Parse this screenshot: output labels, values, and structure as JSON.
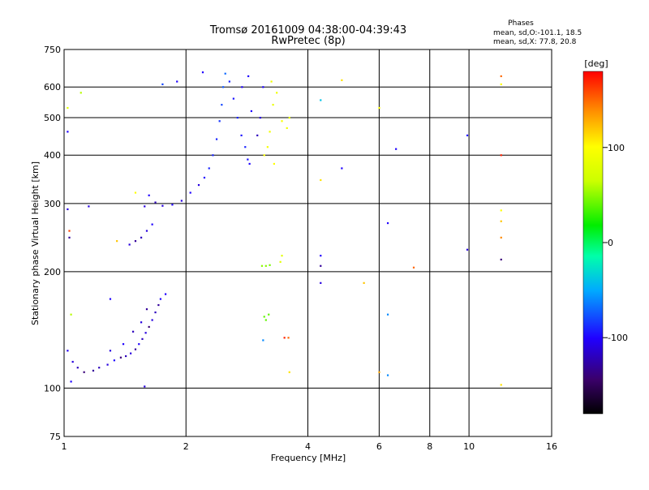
{
  "chart_data": {
    "type": "scatter",
    "title": "Tromsø 20161009 04:38:00-04:39:43",
    "subtitle": "RwPretec (8p)",
    "xlabel": "Frequency [MHz]",
    "ylabel": "Stationary phase Virtual Height [km]",
    "x_scale": "log",
    "y_scale": "log",
    "xlim": [
      1,
      16
    ],
    "ylim": [
      75,
      750
    ],
    "x_ticks": [
      1,
      2,
      4,
      6,
      8,
      10,
      16
    ],
    "y_ticks": [
      75,
      100,
      200,
      300,
      400,
      500,
      600,
      750
    ],
    "grid": true,
    "phase_stats": {
      "header": "Phases",
      "line_o": "mean, sd,O:-101.1, 18.5",
      "line_x": "mean, sd,X:  77.8, 20.8"
    },
    "colorbar": {
      "label": "[deg]",
      "ticks": [
        100,
        0,
        -100
      ],
      "range": [
        -180,
        180
      ],
      "colormap": "rainbow"
    },
    "series": [
      {
        "points": [
          {
            "f": 1.05,
            "h": 117,
            "p": -110
          },
          {
            "f": 1.08,
            "h": 113,
            "p": -120
          },
          {
            "f": 1.12,
            "h": 110,
            "p": -140
          },
          {
            "f": 1.18,
            "h": 111,
            "p": -130
          },
          {
            "f": 1.22,
            "h": 113,
            "p": -120
          },
          {
            "f": 1.28,
            "h": 115,
            "p": -110
          },
          {
            "f": 1.33,
            "h": 118,
            "p": -100
          },
          {
            "f": 1.38,
            "h": 120,
            "p": -140
          },
          {
            "f": 1.42,
            "h": 121,
            "p": -120
          },
          {
            "f": 1.46,
            "h": 123,
            "p": -110
          },
          {
            "f": 1.5,
            "h": 126,
            "p": -130
          },
          {
            "f": 1.53,
            "h": 130,
            "p": -100
          },
          {
            "f": 1.56,
            "h": 134,
            "p": -120
          },
          {
            "f": 1.59,
            "h": 139,
            "p": -110
          },
          {
            "f": 1.62,
            "h": 144,
            "p": -140
          },
          {
            "f": 1.65,
            "h": 150,
            "p": -110
          },
          {
            "f": 1.68,
            "h": 157,
            "p": -120
          },
          {
            "f": 1.71,
            "h": 164,
            "p": -130
          },
          {
            "f": 1.73,
            "h": 170,
            "p": -100
          },
          {
            "f": 1.3,
            "h": 125,
            "p": -110
          },
          {
            "f": 1.4,
            "h": 130,
            "p": -100
          },
          {
            "f": 1.48,
            "h": 140,
            "p": -120
          },
          {
            "f": 1.55,
            "h": 148,
            "p": -110
          },
          {
            "f": 1.6,
            "h": 160,
            "p": -130
          },
          {
            "f": 1.02,
            "h": 125,
            "p": -105
          },
          {
            "f": 1.04,
            "h": 104,
            "p": -100
          },
          {
            "f": 1.3,
            "h": 170,
            "p": -100
          },
          {
            "f": 1.58,
            "h": 101,
            "p": -110
          },
          {
            "f": 1.78,
            "h": 175,
            "p": -100
          },
          {
            "f": 1.45,
            "h": 235,
            "p": -110
          },
          {
            "f": 1.5,
            "h": 240,
            "p": -130
          },
          {
            "f": 1.55,
            "h": 245,
            "p": -120
          },
          {
            "f": 1.6,
            "h": 255,
            "p": -110
          },
          {
            "f": 1.65,
            "h": 265,
            "p": -100
          },
          {
            "f": 1.58,
            "h": 295,
            "p": -110
          },
          {
            "f": 1.62,
            "h": 315,
            "p": -100
          },
          {
            "f": 1.68,
            "h": 302,
            "p": -120
          },
          {
            "f": 1.75,
            "h": 296,
            "p": -110
          },
          {
            "f": 1.85,
            "h": 298,
            "p": -100
          },
          {
            "f": 1.95,
            "h": 305,
            "p": -110
          },
          {
            "f": 2.05,
            "h": 320,
            "p": -100
          },
          {
            "f": 2.15,
            "h": 335,
            "p": -110
          },
          {
            "f": 2.22,
            "h": 350,
            "p": -100
          },
          {
            "f": 2.28,
            "h": 370,
            "p": -90
          },
          {
            "f": 2.33,
            "h": 400,
            "p": -90
          },
          {
            "f": 2.38,
            "h": 440,
            "p": -90
          },
          {
            "f": 2.42,
            "h": 490,
            "p": -85
          },
          {
            "f": 2.45,
            "h": 540,
            "p": -80
          },
          {
            "f": 2.47,
            "h": 600,
            "p": -75
          },
          {
            "f": 2.5,
            "h": 650,
            "p": -70
          },
          {
            "f": 2.56,
            "h": 620,
            "p": -90
          },
          {
            "f": 2.62,
            "h": 560,
            "p": -95
          },
          {
            "f": 2.68,
            "h": 500,
            "p": -90
          },
          {
            "f": 2.74,
            "h": 450,
            "p": -95
          },
          {
            "f": 2.8,
            "h": 420,
            "p": -90
          },
          {
            "f": 2.84,
            "h": 390,
            "p": -95
          },
          {
            "f": 2.87,
            "h": 380,
            "p": -100
          },
          {
            "f": 2.75,
            "h": 600,
            "p": -100
          },
          {
            "f": 2.85,
            "h": 640,
            "p": -100
          },
          {
            "f": 2.9,
            "h": 520,
            "p": -100
          },
          {
            "f": 3.0,
            "h": 450,
            "p": -120
          },
          {
            "f": 3.05,
            "h": 500,
            "p": -110
          },
          {
            "f": 3.1,
            "h": 600,
            "p": -100
          },
          {
            "f": 3.12,
            "h": 400,
            "p": 100
          },
          {
            "f": 3.18,
            "h": 420,
            "p": 95
          },
          {
            "f": 3.22,
            "h": 460,
            "p": 90
          },
          {
            "f": 3.28,
            "h": 540,
            "p": 85
          },
          {
            "f": 3.35,
            "h": 580,
            "p": 90
          },
          {
            "f": 3.45,
            "h": 490,
            "p": 95
          },
          {
            "f": 3.55,
            "h": 470,
            "p": 90
          },
          {
            "f": 3.6,
            "h": 500,
            "p": 85
          },
          {
            "f": 3.25,
            "h": 620,
            "p": 90
          },
          {
            "f": 3.3,
            "h": 380,
            "p": 100
          },
          {
            "f": 3.08,
            "h": 207,
            "p": 50
          },
          {
            "f": 3.15,
            "h": 207,
            "p": 50
          },
          {
            "f": 3.22,
            "h": 208,
            "p": 45
          },
          {
            "f": 3.42,
            "h": 212,
            "p": 80
          },
          {
            "f": 3.45,
            "h": 220,
            "p": 80
          },
          {
            "f": 3.12,
            "h": 153,
            "p": 40
          },
          {
            "f": 3.15,
            "h": 150,
            "p": 40
          },
          {
            "f": 3.2,
            "h": 155,
            "p": 40
          },
          {
            "f": 1.1,
            "h": 580,
            "p": 60
          },
          {
            "f": 1.02,
            "h": 530,
            "p": 80
          },
          {
            "f": 1.02,
            "h": 460,
            "p": -100
          },
          {
            "f": 1.02,
            "h": 290,
            "p": -110
          },
          {
            "f": 1.03,
            "h": 255,
            "p": 160
          },
          {
            "f": 1.03,
            "h": 245,
            "p": -130
          },
          {
            "f": 1.15,
            "h": 295,
            "p": -110
          },
          {
            "f": 1.35,
            "h": 240,
            "p": 120
          },
          {
            "f": 1.04,
            "h": 155,
            "p": 60
          },
          {
            "f": 1.5,
            "h": 320,
            "p": 100
          },
          {
            "f": 1.75,
            "h": 610,
            "p": -80
          },
          {
            "f": 1.9,
            "h": 620,
            "p": -100
          },
          {
            "f": 2.2,
            "h": 655,
            "p": -100
          },
          {
            "f": 3.1,
            "h": 133,
            "p": -60
          },
          {
            "f": 3.5,
            "h": 135,
            "p": 170
          },
          {
            "f": 3.6,
            "h": 110,
            "p": 110
          },
          {
            "f": 3.58,
            "h": 135,
            "p": 150
          },
          {
            "f": 4.3,
            "h": 555,
            "p": -40
          },
          {
            "f": 4.3,
            "h": 345,
            "p": 110
          },
          {
            "f": 4.3,
            "h": 220,
            "p": -100
          },
          {
            "f": 4.3,
            "h": 207,
            "p": -130
          },
          {
            "f": 4.3,
            "h": 187,
            "p": -110
          },
          {
            "f": 4.85,
            "h": 625,
            "p": 110
          },
          {
            "f": 4.85,
            "h": 370,
            "p": -100
          },
          {
            "f": 5.5,
            "h": 187,
            "p": 120
          },
          {
            "f": 6.0,
            "h": 530,
            "p": 100
          },
          {
            "f": 6.0,
            "h": 110,
            "p": 130
          },
          {
            "f": 6.3,
            "h": 267,
            "p": -100
          },
          {
            "f": 6.3,
            "h": 155,
            "p": -60
          },
          {
            "f": 6.3,
            "h": 108,
            "p": -60
          },
          {
            "f": 6.6,
            "h": 415,
            "p": -100
          },
          {
            "f": 7.3,
            "h": 205,
            "p": 150
          },
          {
            "f": 9.9,
            "h": 450,
            "p": -100
          },
          {
            "f": 9.9,
            "h": 228,
            "p": -110
          },
          {
            "f": 12.0,
            "h": 640,
            "p": 150
          },
          {
            "f": 12.0,
            "h": 610,
            "p": 100
          },
          {
            "f": 12.0,
            "h": 400,
            "p": 170
          },
          {
            "f": 12.0,
            "h": 288,
            "p": 100
          },
          {
            "f": 12.0,
            "h": 270,
            "p": 120
          },
          {
            "f": 12.0,
            "h": 245,
            "p": 140
          },
          {
            "f": 12.0,
            "h": 215,
            "p": -140
          },
          {
            "f": 12.0,
            "h": 102,
            "p": 110
          }
        ]
      }
    ]
  }
}
